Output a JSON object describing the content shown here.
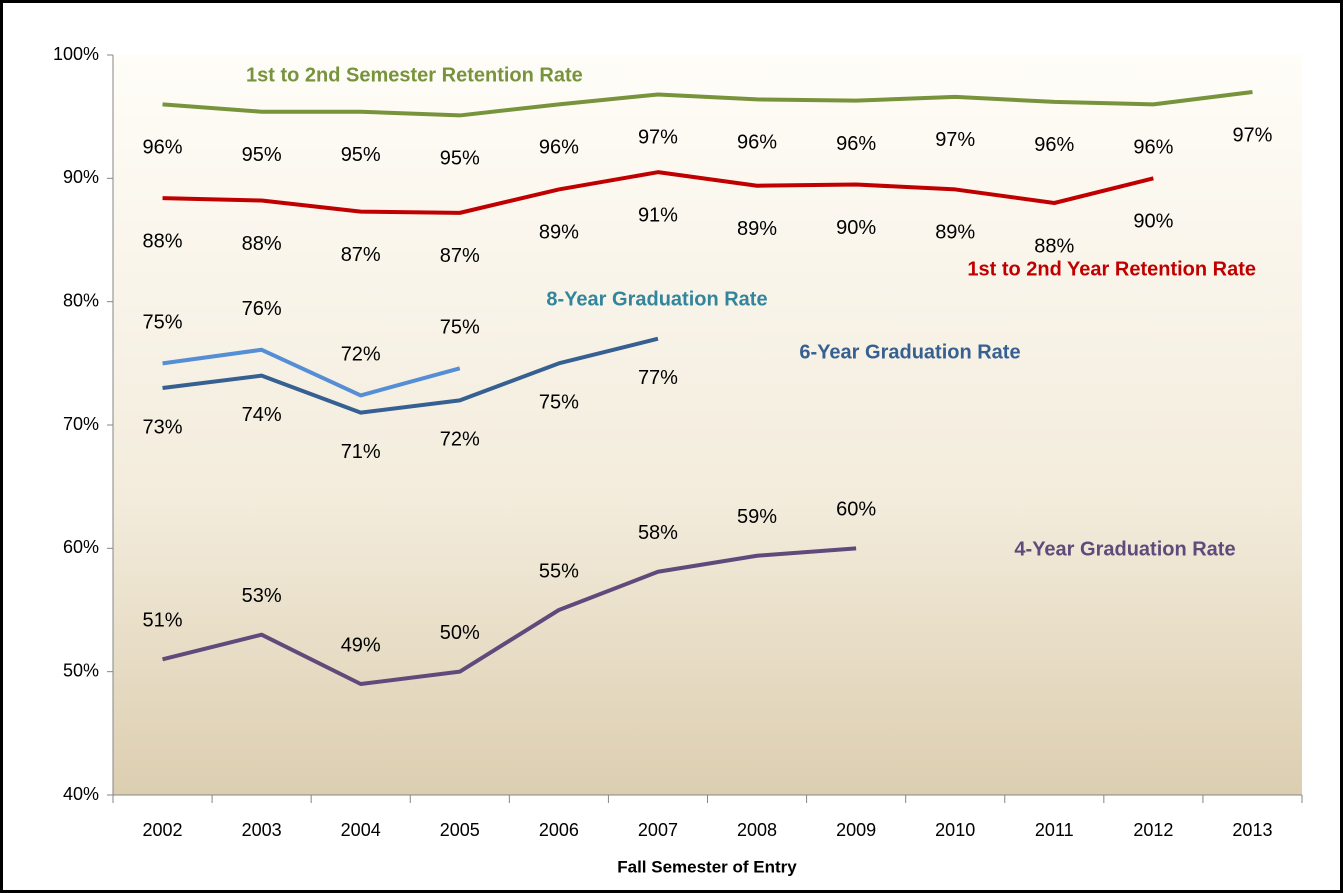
{
  "chart_data": {
    "type": "line",
    "x_label": "Fall Semester of Entry",
    "categories": [
      "2002",
      "2003",
      "2004",
      "2005",
      "2006",
      "2007",
      "2008",
      "2009",
      "2010",
      "2011",
      "2012",
      "2013"
    ],
    "ylim": [
      40,
      100
    ],
    "yticks": [
      {
        "value": 40,
        "label": "40%"
      },
      {
        "value": 50,
        "label": "50%"
      },
      {
        "value": 60,
        "label": "60%"
      },
      {
        "value": 70,
        "label": "70%"
      },
      {
        "value": 80,
        "label": "80%"
      },
      {
        "value": 90,
        "label": "90%"
      },
      {
        "value": 100,
        "label": "100%"
      }
    ],
    "series": [
      {
        "name": "1st to 2nd Semester Retention Rate",
        "color": "#77933c",
        "label_color": "#77933c",
        "values": [
          96.0,
          95.4,
          95.4,
          95.1,
          96.0,
          96.8,
          96.4,
          96.3,
          96.6,
          96.2,
          96.0,
          97.0
        ],
        "value_labels": [
          "96%",
          "95%",
          "95%",
          "95%",
          "96%",
          "97%",
          "96%",
          "96%",
          "97%",
          "96%",
          "96%",
          "97%"
        ]
      },
      {
        "name": "1st to 2nd Year Retention Rate",
        "color": "#c00000",
        "label_color": "#c00000",
        "values": [
          88.4,
          88.2,
          87.3,
          87.2,
          89.1,
          90.5,
          89.4,
          89.5,
          89.1,
          88.0,
          90.0,
          null
        ],
        "value_labels": [
          "88%",
          "88%",
          "87%",
          "87%",
          "89%",
          "91%",
          "89%",
          "90%",
          "89%",
          "88%",
          "90%",
          null
        ]
      },
      {
        "name": "8-Year Graduation Rate",
        "color": "#558ed5",
        "label_color": "#31859c",
        "values": [
          75.0,
          76.1,
          72.4,
          74.6,
          null,
          null,
          null,
          null,
          null,
          null,
          null,
          null
        ],
        "value_labels": [
          "75%",
          "76%",
          "72%",
          "75%",
          null,
          null,
          null,
          null,
          null,
          null,
          null,
          null
        ]
      },
      {
        "name": "6-Year Graduation Rate",
        "color": "#376092",
        "label_color": "#376092",
        "values": [
          73.0,
          74.0,
          71.0,
          72.0,
          75.0,
          77.0,
          null,
          null,
          null,
          null,
          null,
          null
        ],
        "value_labels": [
          "73%",
          "74%",
          "71%",
          "72%",
          "75%",
          "77%",
          null,
          null,
          null,
          null,
          null,
          null
        ]
      },
      {
        "name": "4-Year Graduation Rate",
        "color": "#604a7b",
        "label_color": "#604a7b",
        "values": [
          51.0,
          53.0,
          49.0,
          50.0,
          55.0,
          58.1,
          59.4,
          60.0,
          null,
          null,
          null,
          null
        ],
        "value_labels": [
          "51%",
          "53%",
          "49%",
          "50%",
          "55%",
          "58%",
          "59%",
          "60%",
          null,
          null,
          null,
          null
        ]
      }
    ]
  }
}
